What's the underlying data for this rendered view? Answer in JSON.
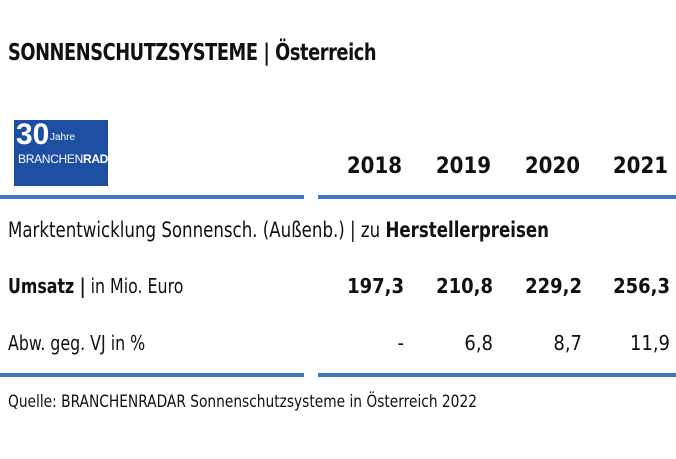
{
  "title": "SONNENSCHUTZSYSTEME | Österreich",
  "logo": {
    "number": "30",
    "jahre": "Jahre",
    "brand_part1": "BRANCHEN",
    "brand_part2": "RADAR"
  },
  "years": [
    "2018",
    "2019",
    "2020",
    "2021"
  ],
  "subtitle": {
    "text": "Marktentwicklung Sonnensch. (Außenb.) | zu ",
    "bold": "Herstellerpreisen"
  },
  "rows": [
    {
      "label_bold": "Umsatz |",
      "label_rest": " in Mio. Euro",
      "values": [
        "197,3",
        "210,8",
        "229,2",
        "256,3"
      ]
    },
    {
      "label_bold": "",
      "label_rest": "Abw. geg. VJ in %",
      "values": [
        "-",
        "6,8",
        "8,7",
        "11,9"
      ]
    }
  ],
  "source": "Quelle: BRANCHENRADAR Sonnenschutzsysteme in Österreich 2022",
  "colors": {
    "accent": "#3b78c8",
    "logo_bg": "#1f4fa3"
  }
}
